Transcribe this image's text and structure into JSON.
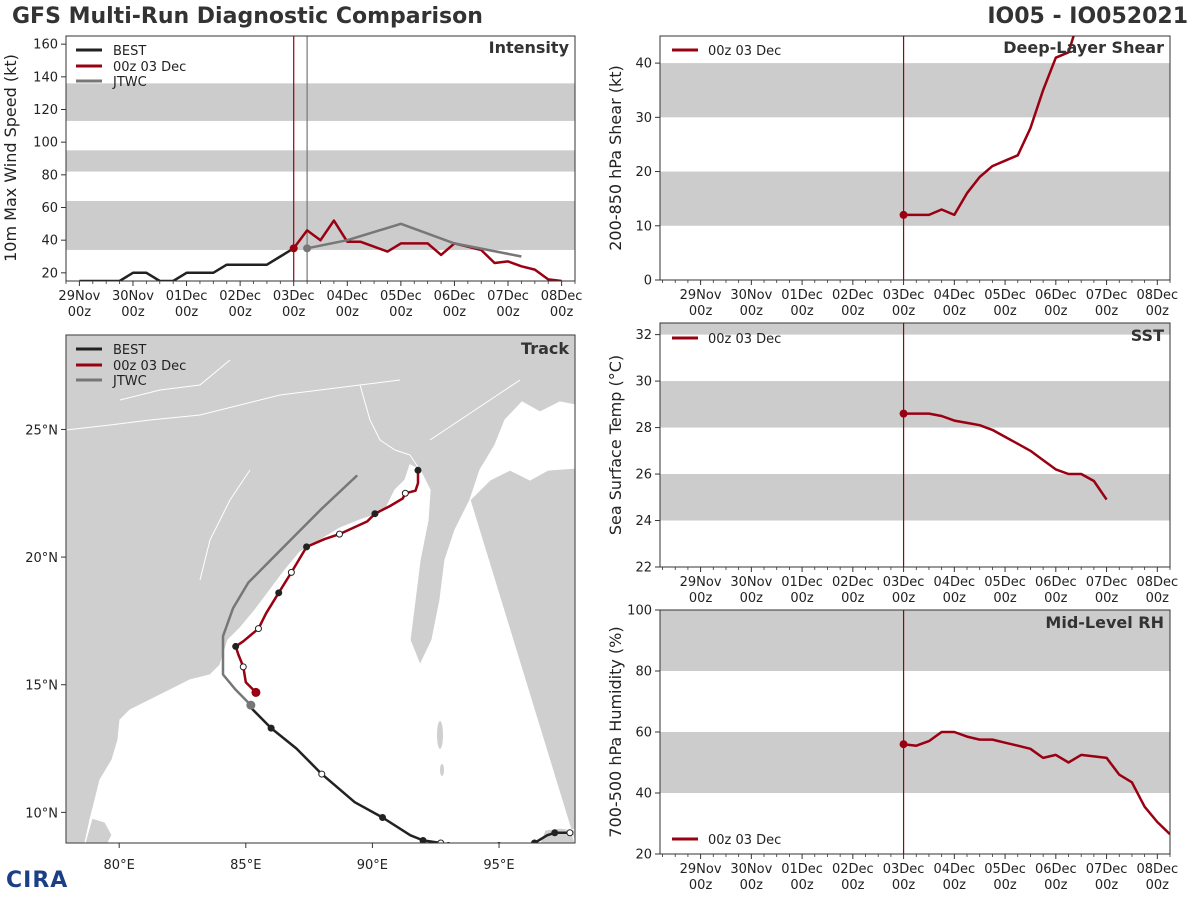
{
  "header": {
    "title": "GFS Multi-Run Diagnostic Comparison",
    "storm_id": "IO05 - IO052021"
  },
  "logo": {
    "text": "CIRA"
  },
  "colors": {
    "best": "#222222",
    "run": "#990012",
    "jtwc": "#777777",
    "band": "#cccccc",
    "land": "#cfcfcf"
  },
  "time_axis": {
    "ticks": [
      {
        "day": "29Nov",
        "hour": "00z",
        "t": 0
      },
      {
        "day": "30Nov",
        "hour": "00z",
        "t": 1
      },
      {
        "day": "01Dec",
        "hour": "00z",
        "t": 2
      },
      {
        "day": "02Dec",
        "hour": "00z",
        "t": 3
      },
      {
        "day": "03Dec",
        "hour": "00z",
        "t": 4
      },
      {
        "day": "04Dec",
        "hour": "00z",
        "t": 5
      },
      {
        "day": "05Dec",
        "hour": "00z",
        "t": 6
      },
      {
        "day": "06Dec",
        "hour": "00z",
        "t": 7
      },
      {
        "day": "07Dec",
        "hour": "00z",
        "t": 8
      },
      {
        "day": "08Dec",
        "hour": "00z",
        "t": 9
      }
    ],
    "init_t": 4
  },
  "chart_data": [
    {
      "id": "intensity",
      "type": "line",
      "title": "Intensity",
      "ylabel": "10m Max Wind Speed (kt)",
      "xlim": [
        -0.25,
        9.25
      ],
      "ylim": [
        15,
        165
      ],
      "yticks": [
        20,
        40,
        60,
        80,
        100,
        120,
        140,
        160
      ],
      "bands": [
        [
          34,
          64
        ],
        [
          82,
          95
        ],
        [
          113,
          136
        ]
      ],
      "vlines": [
        {
          "t": 4.0,
          "color": "#990012"
        },
        {
          "t": 4.25,
          "color": "#777777"
        }
      ],
      "legend": [
        "BEST",
        "00z 03 Dec",
        "JTWC"
      ],
      "series": [
        {
          "name": "BEST",
          "color": "#222222",
          "markers": "none",
          "x": [
            0,
            0.25,
            0.5,
            0.75,
            1.0,
            1.25,
            1.5,
            1.75,
            2.0,
            2.25,
            2.5,
            2.75,
            3.0,
            3.25,
            3.5,
            3.75,
            4.0
          ],
          "y": [
            15,
            15,
            15,
            15,
            20,
            20,
            15,
            15,
            20,
            20,
            20,
            25,
            25,
            25,
            25,
            30,
            35
          ]
        },
        {
          "name": "00z 03 Dec",
          "color": "#990012",
          "markers": "start",
          "x": [
            4.0,
            4.25,
            4.5,
            4.75,
            5.0,
            5.25,
            5.5,
            5.75,
            6.0,
            6.25,
            6.5,
            6.75,
            7.0,
            7.25,
            7.5,
            7.75,
            8.0,
            8.25,
            8.5,
            8.75,
            9.0
          ],
          "y": [
            35,
            46,
            40,
            52,
            39,
            39,
            36,
            33,
            38,
            38,
            38,
            31,
            38,
            36,
            34,
            26,
            27,
            24,
            22,
            16,
            15
          ]
        },
        {
          "name": "JTWC",
          "color": "#777777",
          "markers": "start",
          "x": [
            4.25,
            5.0,
            6.0,
            7.0,
            8.25
          ],
          "y": [
            35,
            40,
            50,
            38,
            30
          ]
        }
      ]
    },
    {
      "id": "shear",
      "type": "line",
      "title": "Deep-Layer Shear",
      "ylabel": "200-850 hPa Shear (kt)",
      "xlim": [
        -0.8,
        9.25
      ],
      "ylim": [
        0,
        45
      ],
      "yticks": [
        0,
        10,
        20,
        30,
        40
      ],
      "bands": [
        [
          10,
          20
        ],
        [
          30,
          40
        ]
      ],
      "vlines": [
        {
          "t": 4.0,
          "color": "#990012"
        }
      ],
      "legend": [
        "00z 03 Dec"
      ],
      "series": [
        {
          "name": "00z 03 Dec",
          "color": "#990012",
          "markers": "start",
          "x": [
            4.0,
            4.25,
            4.5,
            4.75,
            5.0,
            5.25,
            5.5,
            5.75,
            6.0,
            6.25,
            6.5,
            6.75,
            7.0,
            7.25,
            7.35
          ],
          "y": [
            12,
            12,
            12,
            13,
            12,
            16,
            19,
            21,
            22,
            23,
            28,
            35,
            41,
            42,
            45
          ]
        }
      ]
    },
    {
      "id": "sst",
      "type": "line",
      "title": "SST",
      "ylabel": "Sea Surface Temp (°C)",
      "xlim": [
        -0.8,
        9.25
      ],
      "ylim": [
        22,
        32.5
      ],
      "yticks": [
        22,
        24,
        26,
        28,
        30,
        32
      ],
      "bands": [
        [
          24,
          26
        ],
        [
          28,
          30
        ],
        [
          32,
          34
        ]
      ],
      "vlines": [
        {
          "t": 4.0,
          "color": "#990012"
        }
      ],
      "legend": [
        "00z 03 Dec"
      ],
      "series": [
        {
          "name": "00z 03 Dec",
          "color": "#990012",
          "markers": "start",
          "x": [
            4.0,
            4.25,
            4.5,
            4.75,
            5.0,
            5.25,
            5.5,
            5.75,
            6.0,
            6.25,
            6.5,
            6.75,
            7.0,
            7.25,
            7.5,
            7.75,
            8.0
          ],
          "y": [
            28.6,
            28.6,
            28.6,
            28.5,
            28.3,
            28.2,
            28.1,
            27.9,
            27.6,
            27.3,
            27.0,
            26.6,
            26.2,
            26.0,
            26.0,
            25.7,
            24.9
          ]
        }
      ]
    },
    {
      "id": "rh",
      "type": "line",
      "title": "Mid-Level RH",
      "ylabel": "700-500 hPa Humidity (%)",
      "xlim": [
        -0.8,
        9.25
      ],
      "ylim": [
        20,
        100
      ],
      "yticks": [
        20,
        40,
        60,
        80,
        100
      ],
      "bands": [
        [
          40,
          60
        ],
        [
          80,
          100
        ]
      ],
      "vlines": [
        {
          "t": 4.0,
          "color": "#990012"
        }
      ],
      "legend": [
        "00z 03 Dec"
      ],
      "series": [
        {
          "name": "00z 03 Dec",
          "color": "#990012",
          "markers": "start",
          "x": [
            4.0,
            4.25,
            4.5,
            4.75,
            5.0,
            5.25,
            5.5,
            5.75,
            6.0,
            6.25,
            6.5,
            6.75,
            7.0,
            7.25,
            7.5,
            7.75,
            8.0,
            8.25,
            8.5,
            8.75,
            9.0,
            9.25
          ],
          "y": [
            56,
            55.5,
            57,
            60,
            60,
            58.5,
            57.5,
            57.5,
            56.5,
            55.5,
            54.5,
            51.5,
            52.5,
            50,
            52.5,
            52,
            51.5,
            46,
            43.5,
            35.5,
            30.5,
            26.5
          ]
        }
      ]
    },
    {
      "id": "track",
      "type": "scatter",
      "title": "Track",
      "xlim": [
        77.9,
        98.0
      ],
      "ylim": [
        8.8,
        28.7
      ],
      "xticks": [
        {
          "v": 80,
          "label": "80°E"
        },
        {
          "v": 85,
          "label": "85°E"
        },
        {
          "v": 90,
          "label": "90°E"
        },
        {
          "v": 95,
          "label": "95°E"
        }
      ],
      "yticks": [
        {
          "v": 10,
          "label": "10°N"
        },
        {
          "v": 15,
          "label": "15°N"
        },
        {
          "v": 20,
          "label": "20°N"
        },
        {
          "v": 25,
          "label": "25°N"
        }
      ],
      "legend": [
        "BEST",
        "00z 03 Dec",
        "JTWC"
      ],
      "series": [
        {
          "name": "BEST",
          "color": "#222222",
          "lon": [
            97.8,
            97.2,
            96.9,
            96.4,
            96.0,
            95.0,
            94.0,
            93.0,
            92.7,
            92.0,
            91.5,
            90.4,
            89.3,
            88.0,
            87.0,
            86.0,
            85.2
          ],
          "lat": [
            9.2,
            9.2,
            9.1,
            8.8,
            8.7,
            8.7,
            8.7,
            8.7,
            8.8,
            8.9,
            9.1,
            9.8,
            10.4,
            11.5,
            12.5,
            13.3,
            14.1
          ],
          "filled": [
            false,
            true,
            false,
            true,
            false,
            true,
            false,
            true,
            false,
            true,
            false,
            true,
            false,
            false,
            false,
            true,
            false
          ],
          "hollow": [
            true,
            false,
            false,
            false,
            false,
            false,
            false,
            false,
            true,
            false,
            false,
            false,
            false,
            true,
            false,
            false,
            false
          ]
        },
        {
          "name": "00z 03 Dec",
          "color": "#990012",
          "lon": [
            85.4,
            85.0,
            84.9,
            84.7,
            84.6,
            84.9,
            85.5,
            85.8,
            86.3,
            86.8,
            87.4,
            88.1,
            88.7,
            89.8,
            90.1,
            90.7,
            91.2,
            91.3,
            91.7,
            91.8,
            91.8
          ],
          "lat": [
            14.7,
            15.1,
            15.7,
            16.2,
            16.5,
            16.7,
            17.2,
            17.8,
            18.6,
            19.4,
            20.4,
            20.7,
            20.9,
            21.4,
            21.7,
            22.0,
            22.3,
            22.5,
            22.6,
            22.9,
            23.4
          ],
          "filled": [
            false,
            false,
            false,
            false,
            true,
            false,
            false,
            false,
            true,
            false,
            true,
            false,
            false,
            false,
            true,
            false,
            false,
            false,
            false,
            false,
            true
          ],
          "hollow": [
            false,
            false,
            true,
            false,
            false,
            false,
            true,
            false,
            false,
            true,
            false,
            false,
            true,
            false,
            false,
            false,
            false,
            true,
            false,
            false,
            false
          ],
          "start": [
            85.4,
            14.7
          ]
        },
        {
          "name": "JTWC",
          "color": "#777777",
          "lon": [
            85.2,
            84.6,
            84.1,
            84.1,
            84.5,
            85.1,
            86.0,
            87.0,
            88.0,
            89.4
          ],
          "lat": [
            14.2,
            14.8,
            15.4,
            16.9,
            18.0,
            19.0,
            19.9,
            20.9,
            21.9,
            23.2
          ],
          "start": [
            85.2,
            14.2
          ]
        }
      ]
    }
  ]
}
